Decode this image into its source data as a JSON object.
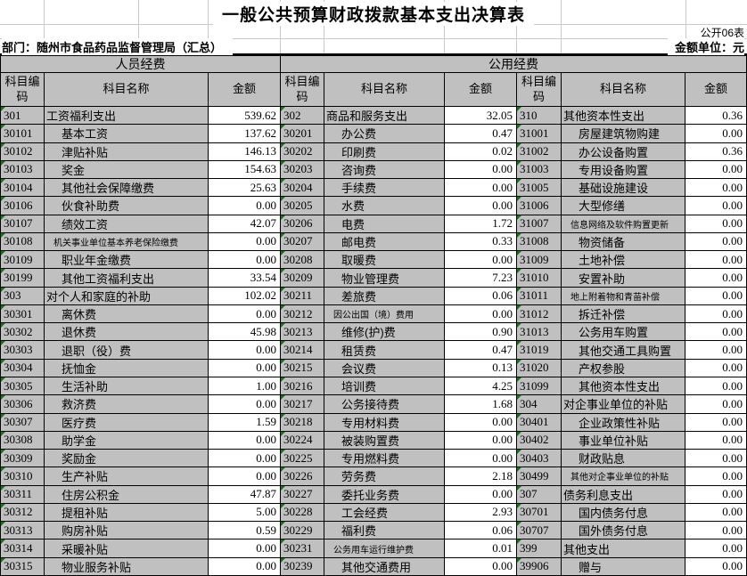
{
  "header": {
    "title": "一般公共预算财政拨款基本支出决算表",
    "table_no": "公开06表",
    "department": "部门：随州市食品药品监督管理局（汇总）",
    "unit": "金额单位：元"
  },
  "colors": {
    "cell_fill_gray": "#c0c0c0",
    "amount_fill_white": "#ffffff",
    "corner_marker_green": "#0a7a0a",
    "grid_black": "#000000"
  },
  "table": {
    "group_headers": [
      "人员经费",
      "公用经费"
    ],
    "col_headers": {
      "code": "科目编码",
      "name": "科目名称",
      "amount": "金额"
    },
    "sections": [
      {
        "group": "人员经费",
        "rows": [
          {
            "code": "301",
            "name": "工资福利支出",
            "amount": "539.62",
            "indent": 0
          },
          {
            "code": "30101",
            "name": "基本工资",
            "amount": "137.62",
            "indent": 1
          },
          {
            "code": "30102",
            "name": "津贴补贴",
            "amount": "146.13",
            "indent": 1
          },
          {
            "code": "30103",
            "name": "奖金",
            "amount": "154.63",
            "indent": 1
          },
          {
            "code": "30104",
            "name": "其他社会保障缴费",
            "amount": "25.63",
            "indent": 1
          },
          {
            "code": "30106",
            "name": "伙食补助费",
            "amount": "0.00",
            "indent": 1
          },
          {
            "code": "30107",
            "name": "绩效工资",
            "amount": "42.07",
            "indent": 1
          },
          {
            "code": "30108",
            "name": "机关事业单位基本养老保险缴费",
            "amount": "0.00",
            "indent": 1,
            "small": true
          },
          {
            "code": "30109",
            "name": "职业年金缴费",
            "amount": "0.00",
            "indent": 1
          },
          {
            "code": "30199",
            "name": "其他工资福利支出",
            "amount": "33.54",
            "indent": 1
          },
          {
            "code": "303",
            "name": "对个人和家庭的补助",
            "amount": "102.02",
            "indent": 0
          },
          {
            "code": "30301",
            "name": "离休费",
            "amount": "0.00",
            "indent": 1
          },
          {
            "code": "30302",
            "name": "退休费",
            "amount": "45.98",
            "indent": 1
          },
          {
            "code": "30303",
            "name": "退职（役）费",
            "amount": "0.00",
            "indent": 1
          },
          {
            "code": "30304",
            "name": "抚恤金",
            "amount": "0.00",
            "indent": 1
          },
          {
            "code": "30305",
            "name": "生活补助",
            "amount": "1.00",
            "indent": 1
          },
          {
            "code": "30306",
            "name": "救济费",
            "amount": "0.00",
            "indent": 1
          },
          {
            "code": "30307",
            "name": "医疗费",
            "amount": "1.59",
            "indent": 1
          },
          {
            "code": "30308",
            "name": "助学金",
            "amount": "0.00",
            "indent": 1
          },
          {
            "code": "30309",
            "name": "奖励金",
            "amount": "0.00",
            "indent": 1
          },
          {
            "code": "30310",
            "name": "生产补贴",
            "amount": "0.00",
            "indent": 1
          },
          {
            "code": "30311",
            "name": "住房公积金",
            "amount": "47.87",
            "indent": 1
          },
          {
            "code": "30312",
            "name": "提租补贴",
            "amount": "5.00",
            "indent": 1
          },
          {
            "code": "30313",
            "name": "购房补贴",
            "amount": "0.59",
            "indent": 1
          },
          {
            "code": "30314",
            "name": "采暖补贴",
            "amount": "0.00",
            "indent": 1
          },
          {
            "code": "30315",
            "name": "物业服务补贴",
            "amount": "0.00",
            "indent": 1
          }
        ]
      },
      {
        "group": "公用经费",
        "rows": [
          {
            "code": "302",
            "name": "商品和服务支出",
            "amount": "32.05",
            "indent": 0
          },
          {
            "code": "30201",
            "name": "办公费",
            "amount": "0.47",
            "indent": 1
          },
          {
            "code": "30202",
            "name": "印刷费",
            "amount": "0.02",
            "indent": 1
          },
          {
            "code": "30203",
            "name": "咨询费",
            "amount": "0.00",
            "indent": 1
          },
          {
            "code": "30204",
            "name": "手续费",
            "amount": "0.00",
            "indent": 1
          },
          {
            "code": "30205",
            "name": "水费",
            "amount": "0.00",
            "indent": 1
          },
          {
            "code": "30206",
            "name": "电费",
            "amount": "1.72",
            "indent": 1
          },
          {
            "code": "30207",
            "name": "邮电费",
            "amount": "0.33",
            "indent": 1
          },
          {
            "code": "30208",
            "name": "取暖费",
            "amount": "0.00",
            "indent": 1
          },
          {
            "code": "30209",
            "name": "物业管理费",
            "amount": "7.23",
            "indent": 1
          },
          {
            "code": "30211",
            "name": "差旅费",
            "amount": "0.06",
            "indent": 1
          },
          {
            "code": "30212",
            "name": "因公出国（境）费用",
            "amount": "0.00",
            "indent": 1,
            "small": true
          },
          {
            "code": "30213",
            "name": "维修(护)费",
            "amount": "0.90",
            "indent": 1
          },
          {
            "code": "30214",
            "name": "租赁费",
            "amount": "0.47",
            "indent": 1
          },
          {
            "code": "30215",
            "name": "会议费",
            "amount": "0.13",
            "indent": 1
          },
          {
            "code": "30216",
            "name": "培训费",
            "amount": "4.25",
            "indent": 1
          },
          {
            "code": "30217",
            "name": "公务接待费",
            "amount": "1.68",
            "indent": 1
          },
          {
            "code": "30218",
            "name": "专用材料费",
            "amount": "0.00",
            "indent": 1
          },
          {
            "code": "30224",
            "name": "被装购置费",
            "amount": "0.00",
            "indent": 1
          },
          {
            "code": "30225",
            "name": "专用燃料费",
            "amount": "0.00",
            "indent": 1
          },
          {
            "code": "30226",
            "name": "劳务费",
            "amount": "2.18",
            "indent": 1
          },
          {
            "code": "30227",
            "name": "委托业务费",
            "amount": "0.00",
            "indent": 1
          },
          {
            "code": "30228",
            "name": "工会经费",
            "amount": "2.93",
            "indent": 1
          },
          {
            "code": "30229",
            "name": "福利费",
            "amount": "0.06",
            "indent": 1
          },
          {
            "code": "30231",
            "name": "公务用车运行维护费",
            "amount": "0.01",
            "indent": 1,
            "small": true
          },
          {
            "code": "30239",
            "name": "其他交通费用",
            "amount": "0.00",
            "indent": 1
          }
        ]
      },
      {
        "group": "公用经费",
        "rows": [
          {
            "code": "310",
            "name": "其他资本性支出",
            "amount": "0.36",
            "indent": 0
          },
          {
            "code": "31001",
            "name": "房屋建筑物购建",
            "amount": "0.00",
            "indent": 1
          },
          {
            "code": "31002",
            "name": "办公设备购置",
            "amount": "0.36",
            "indent": 1
          },
          {
            "code": "31003",
            "name": "专用设备购置",
            "amount": "0.00",
            "indent": 1
          },
          {
            "code": "31005",
            "name": "基础设施建设",
            "amount": "0.00",
            "indent": 1
          },
          {
            "code": "31006",
            "name": "大型修缮",
            "amount": "0.00",
            "indent": 1
          },
          {
            "code": "31007",
            "name": "信息网络及软件购置更新",
            "amount": "0.00",
            "indent": 1,
            "small": true
          },
          {
            "code": "31008",
            "name": "物资储备",
            "amount": "0.00",
            "indent": 1
          },
          {
            "code": "31009",
            "name": "土地补偿",
            "amount": "0.00",
            "indent": 1
          },
          {
            "code": "31010",
            "name": "安置补助",
            "amount": "0.00",
            "indent": 1
          },
          {
            "code": "31011",
            "name": "地上附着物和青苗补偿",
            "amount": "0.00",
            "indent": 1,
            "small": true
          },
          {
            "code": "31012",
            "name": "拆迁补偿",
            "amount": "0.00",
            "indent": 1
          },
          {
            "code": "31013",
            "name": "公务用车购置",
            "amount": "0.00",
            "indent": 1
          },
          {
            "code": "31019",
            "name": "其他交通工具购置",
            "amount": "0.00",
            "indent": 1
          },
          {
            "code": "31020",
            "name": "产权参股",
            "amount": "0.00",
            "indent": 1
          },
          {
            "code": "31099",
            "name": "其他资本性支出",
            "amount": "0.00",
            "indent": 1
          },
          {
            "code": "304",
            "name": "对企事业单位的补贴",
            "amount": "0.00",
            "indent": 0
          },
          {
            "code": "30401",
            "name": "企业政策性补贴",
            "amount": "0.00",
            "indent": 1
          },
          {
            "code": "30402",
            "name": "事业单位补贴",
            "amount": "0.00",
            "indent": 1
          },
          {
            "code": "30403",
            "name": "财政贴息",
            "amount": "0.00",
            "indent": 1
          },
          {
            "code": "30499",
            "name": "其他对企事业单位的补贴",
            "amount": "0.00",
            "indent": 1,
            "small": true
          },
          {
            "code": "307",
            "name": "债务利息支出",
            "amount": "0.00",
            "indent": 0
          },
          {
            "code": "30701",
            "name": "国内债务付息",
            "amount": "0.00",
            "indent": 1
          },
          {
            "code": "30707",
            "name": "国外债务付息",
            "amount": "0.00",
            "indent": 1
          },
          {
            "code": "399",
            "name": "其他支出",
            "amount": "0.00",
            "indent": 0
          },
          {
            "code": "39906",
            "name": "赠与",
            "amount": "0.00",
            "indent": 1
          }
        ]
      }
    ]
  }
}
